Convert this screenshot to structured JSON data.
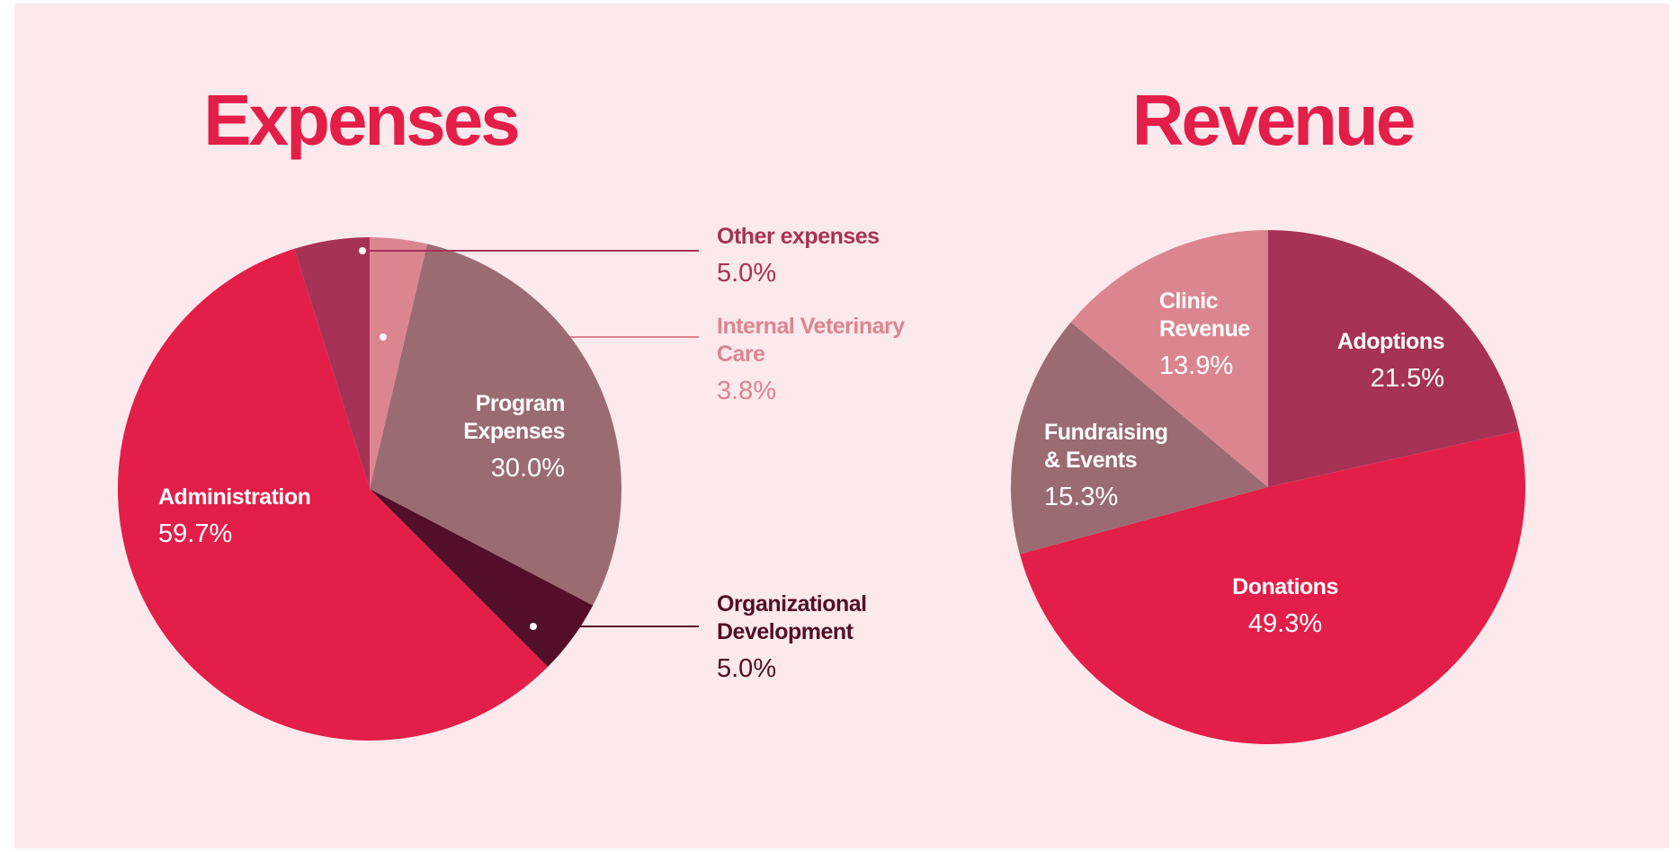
{
  "chart_data": [
    {
      "type": "pie",
      "title": "Expenses",
      "categories": [
        "Internal Veterinary Care",
        "Program Expenses",
        "Organizational Development",
        "Administration",
        "Other expenses"
      ],
      "values": [
        3.8,
        30.0,
        5.0,
        59.7,
        5.0
      ],
      "value_labels": [
        "3.8%",
        "30.0%",
        "5.0%",
        "59.7%",
        "5.0%"
      ],
      "colors": [
        "#db8590",
        "#9b6b72",
        "#530f27",
        "#e31e48",
        "#a63356"
      ]
    },
    {
      "type": "pie",
      "title": "Revenue",
      "categories": [
        "Adoptions",
        "Donations",
        "Fundraising & Events",
        "Clinic Revenue"
      ],
      "values": [
        21.5,
        49.3,
        15.3,
        13.9
      ],
      "value_labels": [
        "21.5%",
        "49.3%",
        "15.3%",
        "13.9%"
      ],
      "colors": [
        "#a63356",
        "#e31e48",
        "#9b6b72",
        "#db8590"
      ]
    }
  ]
}
